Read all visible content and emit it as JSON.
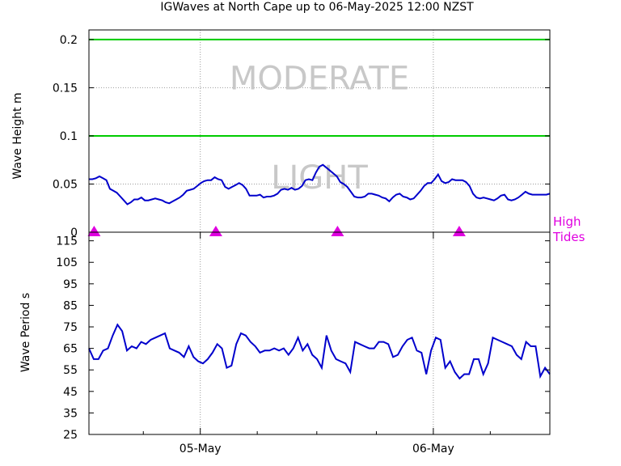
{
  "title": "IGWaves at North Cape up to 06-May-2025 12:00 NZST",
  "colors": {
    "line": "#0000cc",
    "threshold": "#00cc00",
    "band_label": "#c8c8c8",
    "tide": "#e000e0",
    "grid": "#9a9a9a"
  },
  "tide_label": [
    "High",
    "Tides"
  ],
  "chart_data": [
    {
      "type": "line",
      "name": "wave-height",
      "ylabel": "Wave Height m",
      "ylim": [
        0,
        0.21
      ],
      "yticks": [
        0,
        0.05,
        0.1,
        0.15,
        0.2
      ],
      "ytick_labels": [
        "0",
        "0.05",
        "0.1",
        "0.15",
        "0.2"
      ],
      "xlim": [
        0,
        178
      ],
      "xticks": [
        43,
        133
      ],
      "xtick_labels": [
        "05-May",
        "06-May"
      ],
      "thresholds": [
        0.1,
        0.2
      ],
      "band_labels": [
        {
          "text": "MODERATE",
          "y": 0.16
        },
        {
          "text": "LIGHT",
          "y": 0.057
        }
      ],
      "high_tides_x": [
        2,
        49,
        96,
        143
      ],
      "values": [
        0.055,
        0.055,
        0.056,
        0.058,
        0.056,
        0.054,
        0.045,
        0.043,
        0.041,
        0.037,
        0.033,
        0.029,
        0.031,
        0.034,
        0.034,
        0.036,
        0.033,
        0.033,
        0.034,
        0.035,
        0.034,
        0.033,
        0.031,
        0.03,
        0.032,
        0.034,
        0.036,
        0.039,
        0.043,
        0.044,
        0.045,
        0.048,
        0.051,
        0.053,
        0.054,
        0.054,
        0.057,
        0.055,
        0.054,
        0.047,
        0.045,
        0.047,
        0.049,
        0.051,
        0.049,
        0.045,
        0.038,
        0.038,
        0.038,
        0.039,
        0.036,
        0.037,
        0.037,
        0.038,
        0.04,
        0.044,
        0.045,
        0.044,
        0.046,
        0.044,
        0.045,
        0.048,
        0.054,
        0.055,
        0.054,
        0.062,
        0.068,
        0.07,
        0.067,
        0.064,
        0.061,
        0.058,
        0.052,
        0.05,
        0.047,
        0.042,
        0.037,
        0.036,
        0.036,
        0.037,
        0.04,
        0.04,
        0.039,
        0.038,
        0.036,
        0.035,
        0.032,
        0.036,
        0.039,
        0.04,
        0.037,
        0.036,
        0.034,
        0.035,
        0.039,
        0.043,
        0.048,
        0.051,
        0.051,
        0.055,
        0.06,
        0.053,
        0.051,
        0.052,
        0.055,
        0.054,
        0.054,
        0.054,
        0.052,
        0.048,
        0.04,
        0.036,
        0.035,
        0.036,
        0.035,
        0.034,
        0.033,
        0.035,
        0.038,
        0.039,
        0.034,
        0.033,
        0.034,
        0.036,
        0.039,
        0.042,
        0.04,
        0.039,
        0.039,
        0.039,
        0.039,
        0.039,
        0.04
      ]
    },
    {
      "type": "line",
      "name": "wave-period",
      "ylabel": "Wave Period s",
      "ylim": [
        25,
        119
      ],
      "yticks": [
        25,
        35,
        45,
        55,
        65,
        75,
        85,
        95,
        105,
        115
      ],
      "ytick_labels": [
        "25",
        "35",
        "45",
        "55",
        "65",
        "75",
        "85",
        "95",
        "105",
        "115"
      ],
      "xlim": [
        0,
        178
      ],
      "xticks": [
        43,
        133
      ],
      "xtick_labels": [
        "05-May",
        "06-May"
      ],
      "minor_xticks": [
        21,
        65,
        88,
        111,
        155
      ],
      "values": [
        65,
        60,
        60,
        64,
        65,
        71,
        76,
        73,
        64,
        66,
        65,
        68,
        67,
        69,
        70,
        71,
        72,
        65,
        64,
        63,
        61,
        66,
        61,
        59,
        58,
        60,
        63,
        67,
        65,
        56,
        57,
        67,
        72,
        71,
        68,
        66,
        63,
        64,
        64,
        65,
        64,
        65,
        62,
        65,
        70,
        64,
        67,
        62,
        60,
        56,
        71,
        64,
        60,
        59,
        58,
        54,
        68,
        67,
        66,
        65,
        65,
        68,
        68,
        67,
        61,
        62,
        66,
        69,
        70,
        64,
        63,
        53,
        64,
        70,
        69,
        56,
        59,
        54,
        51,
        53,
        53,
        60,
        60,
        53,
        58,
        70,
        69,
        68,
        67,
        66,
        62,
        60,
        68,
        66,
        66,
        52,
        56,
        53
      ]
    }
  ]
}
